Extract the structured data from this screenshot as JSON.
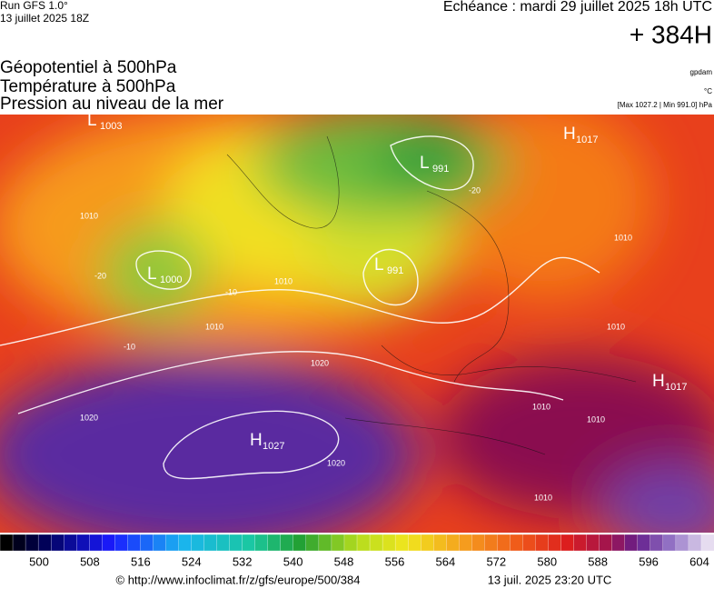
{
  "header": {
    "run": "Run GFS 1.0°",
    "run_date": "13 juillet 2025 18Z",
    "valid": "Echéance : mardi 29 juillet 2025 18h UTC",
    "lead": "+ 384H"
  },
  "fields": [
    "Géopotentiel à 500hPa",
    "Température à 500hPa",
    "Pression au niveau de la mer"
  ],
  "units": {
    "geopotential": "gpdam",
    "temperature": "°C",
    "pressure": "[Max 1027.2 | Min 991.0] hPa"
  },
  "centers": [
    {
      "type": "L",
      "value": 1003
    },
    {
      "type": "H",
      "value": 1017
    },
    {
      "type": "L",
      "value": 991
    },
    {
      "type": "L",
      "value": 991
    },
    {
      "type": "L",
      "value": 1000
    },
    {
      "type": "H",
      "value": 1027
    },
    {
      "type": "H",
      "value": 1017
    }
  ],
  "isobar_labels": [
    1010,
    1010,
    1010,
    1010,
    1020,
    1020,
    1020,
    1010,
    1010,
    1010,
    1010
  ],
  "isotherm_labels": [
    -20,
    -20,
    -10,
    -10
  ],
  "legend": {
    "ticks": [
      500,
      508,
      516,
      524,
      532,
      540,
      548,
      556,
      564,
      572,
      580,
      588,
      596,
      604
    ]
  },
  "footer": {
    "source": "© http://www.infoclimat.fr/z/gfs/europe/500/384",
    "timestamp": "13 juil. 2025 23:20 UTC"
  }
}
